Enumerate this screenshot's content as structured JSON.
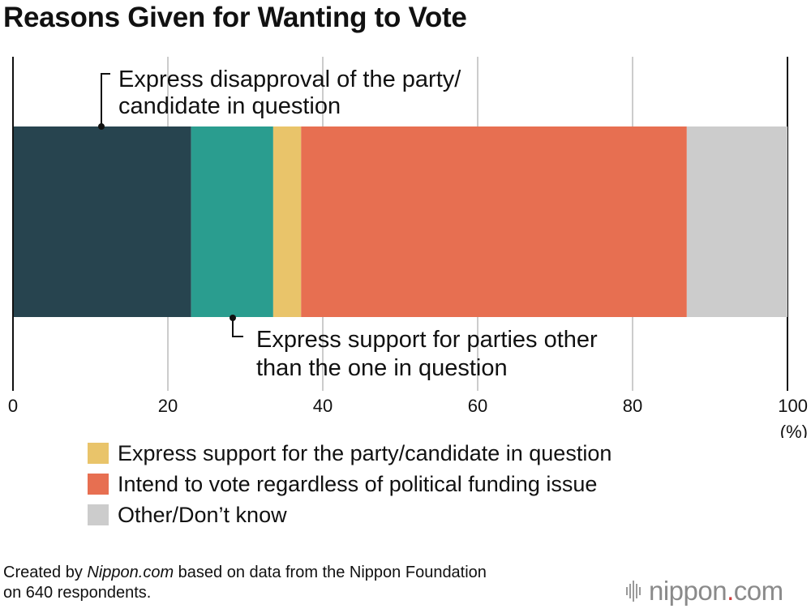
{
  "title": "Reasons Given for Wanting to Vote",
  "colors": {
    "dark_teal": "#27444f",
    "teal": "#2a9d8f",
    "yellow": "#e9c46a",
    "orange": "#e76f51",
    "gray": "#cccccc",
    "gridline": "#cccccc",
    "axis": "#111111",
    "logo_dot": "#d23a3a"
  },
  "chart_data": {
    "type": "bar",
    "orientation": "horizontal",
    "stacked": true,
    "xlim": [
      0,
      100
    ],
    "x_ticks": [
      "0",
      "20",
      "40",
      "60",
      "80",
      "100"
    ],
    "x_unit": "(%)",
    "grid": true,
    "series": [
      {
        "name": "Express disapproval of the party/candidate in question",
        "value": 23.0,
        "color": "#27444f"
      },
      {
        "name": "Express support for parties other than the one in question",
        "value": 10.6,
        "color": "#2a9d8f"
      },
      {
        "name": "Express support for the party/candidate in question",
        "value": 3.6,
        "color": "#e9c46a"
      },
      {
        "name": "Intend to vote regardless of political funding issue",
        "value": 49.8,
        "color": "#e76f51"
      },
      {
        "name": "Other/Don’t know",
        "value": 13.0,
        "color": "#cccccc"
      }
    ],
    "annotations": [
      {
        "lines": [
          "Express disapproval of the party/",
          "candidate in question"
        ]
      },
      {
        "lines": [
          "Express support for parties other",
          "than the one in question"
        ]
      }
    ]
  },
  "legend": [
    {
      "label": "Express support for the party/candidate in question",
      "color": "#e9c46a"
    },
    {
      "label": "Intend to vote regardless of political funding issue",
      "color": "#e76f51"
    },
    {
      "label": "Other/Don’t know",
      "color": "#cccccc"
    }
  ],
  "source": {
    "prefix": "Created by ",
    "site": "Nippon.com",
    "suffix": " based on data from the Nippon Foundation",
    "line2": "on 640 respondents."
  },
  "logo": {
    "pre": "nippon",
    "dot": ".",
    "post": "com"
  }
}
